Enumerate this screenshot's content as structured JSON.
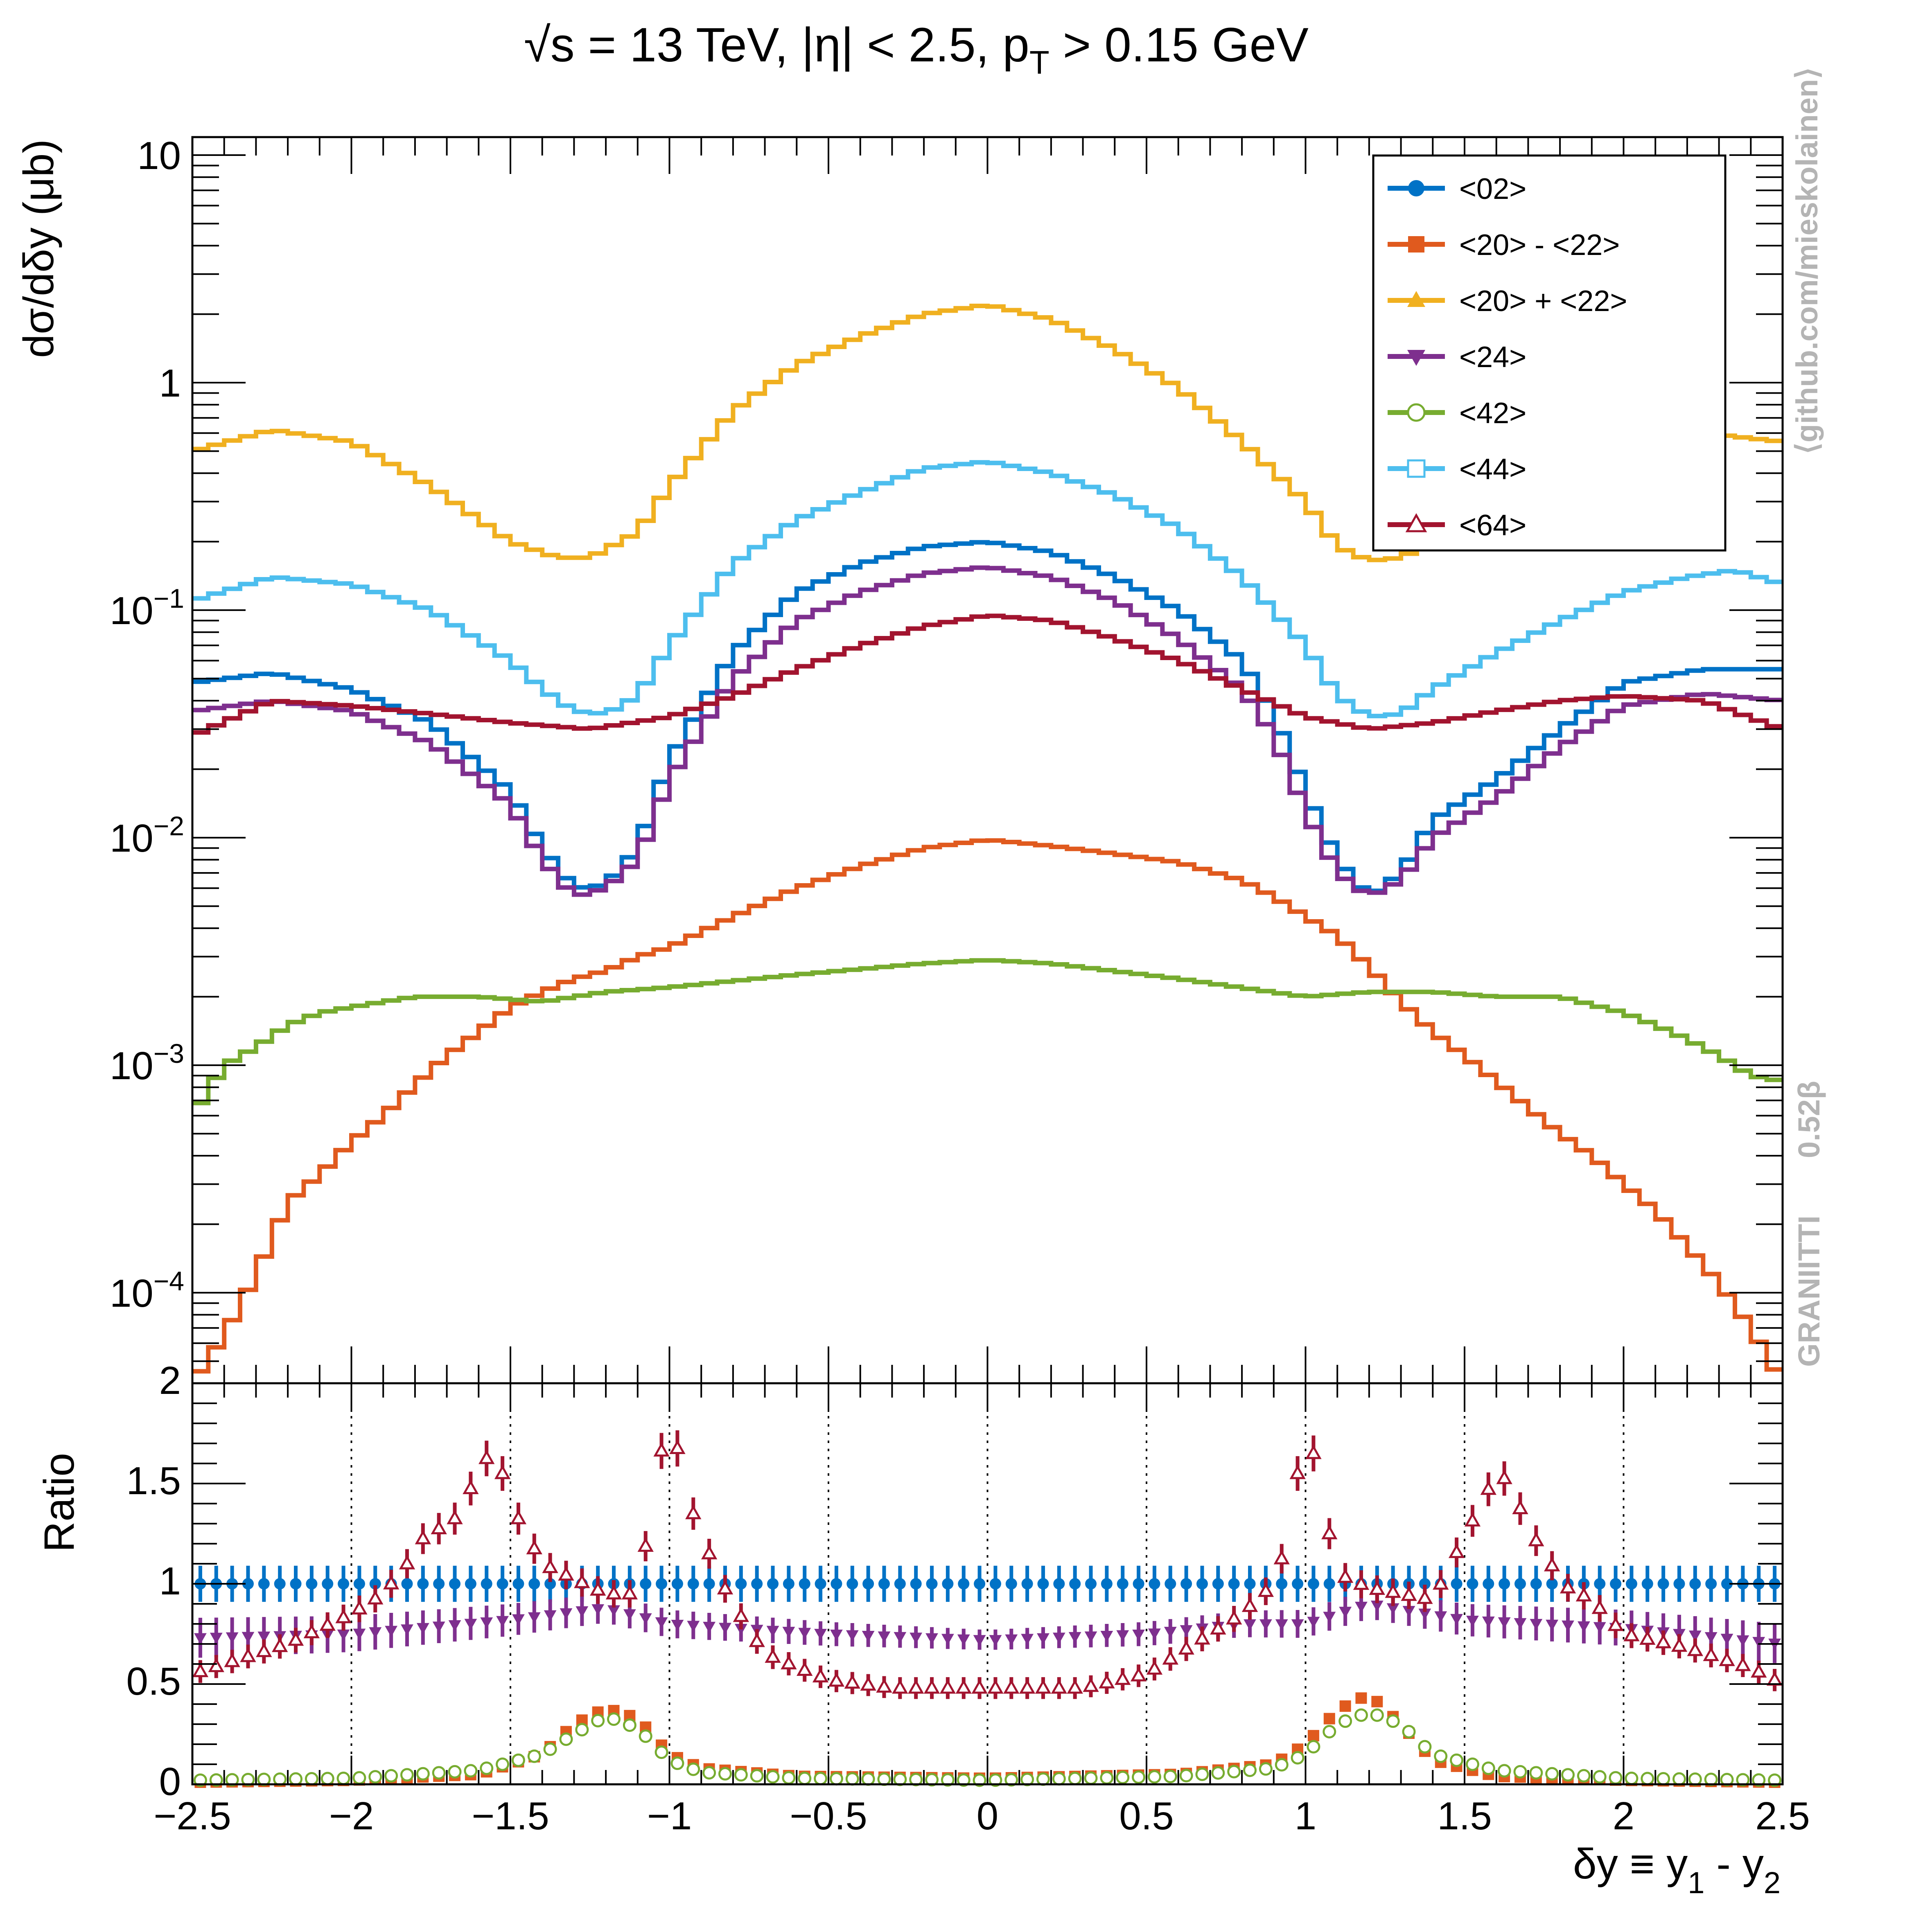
{
  "chart_data": [
    {
      "type": "line",
      "title": "√s = 13 TeV, |η| < 2.5, p_T > 0.15 GeV",
      "title_parts": {
        "main": "√s = 13 TeV, |η| < 2.5, p",
        "sub": "T",
        "tail": " > 0.15 GeV"
      },
      "ylabel": "dσ/dδy  (μb)",
      "y_scale": "log",
      "ylim": [
        4e-05,
        12
      ],
      "xlim": [
        -2.5,
        2.5
      ],
      "x_tick_labels": [
        "−2.5",
        "−2",
        "−1.5",
        "−1",
        "−0.5",
        "0",
        "0.5",
        "1",
        "1.5",
        "2",
        "2.5"
      ],
      "y_tick_labels": [
        {
          "value": 10,
          "label": "10"
        },
        {
          "value": 1,
          "label": "1"
        },
        {
          "value": 0.1,
          "label": "10",
          "exp": "−1"
        },
        {
          "value": 0.01,
          "label": "10",
          "exp": "−2"
        },
        {
          "value": 0.001,
          "label": "10",
          "exp": "−3"
        },
        {
          "value": 0.0001,
          "label": "10",
          "exp": "−4"
        }
      ],
      "legend_placement": "top-right",
      "series": [
        {
          "name": "<02>",
          "color": "#0072c6",
          "marker": "filled-circle",
          "x": [
            -2.5,
            -2.25,
            -2.0,
            -1.75,
            -1.5,
            -1.4,
            -1.3,
            -1.2,
            -1.1,
            -1.0,
            -0.8,
            -0.6,
            -0.4,
            -0.2,
            0.0,
            0.2,
            0.4,
            0.6,
            0.8,
            0.9,
            1.0,
            1.1,
            1.2,
            1.3,
            1.4,
            1.6,
            1.8,
            2.0,
            2.25,
            2.5
          ],
          "y": [
            0.048,
            0.053,
            0.045,
            0.032,
            0.016,
            0.009,
            0.006,
            0.0062,
            0.009,
            0.022,
            0.065,
            0.12,
            0.16,
            0.19,
            0.2,
            0.18,
            0.14,
            0.1,
            0.06,
            0.035,
            0.016,
            0.008,
            0.0055,
            0.007,
            0.012,
            0.018,
            0.03,
            0.048,
            0.055,
            0.055
          ]
        },
        {
          "name": "<20> - <22>",
          "color": "#e05a1e",
          "marker": "filled-square",
          "x": [
            -2.5,
            -2.4,
            -2.3,
            -2.2,
            -2.1,
            -2.0,
            -1.9,
            -1.8,
            -1.7,
            -1.6,
            -1.5,
            -1.4,
            -1.3,
            -1.2,
            -1.1,
            -1.0,
            -0.8,
            -0.6,
            -0.4,
            -0.2,
            0.0,
            0.2,
            0.4,
            0.6,
            0.8,
            0.9,
            1.0,
            1.1,
            1.2,
            1.3,
            1.4,
            1.5,
            1.6,
            1.7,
            1.8,
            1.9,
            2.0,
            2.1,
            2.2,
            2.3,
            2.4,
            2.5
          ],
          "y": [
            4e-05,
            6.5e-05,
            0.00012,
            0.00025,
            0.00033,
            0.00046,
            0.0006,
            0.00082,
            0.0011,
            0.0014,
            0.0018,
            0.0021,
            0.0024,
            0.0026,
            0.003,
            0.0033,
            0.0045,
            0.006,
            0.0075,
            0.009,
            0.0098,
            0.0092,
            0.0085,
            0.0078,
            0.0065,
            0.0055,
            0.0045,
            0.0037,
            0.0027,
            0.0019,
            0.0014,
            0.0011,
            0.00085,
            0.00065,
            0.0005,
            0.0004,
            0.0003,
            0.00023,
            0.00016,
            0.00011,
            7e-05,
            4e-05
          ]
        },
        {
          "name": "<20> + <22>",
          "color": "#f0b020",
          "marker": "filled-triangle-up",
          "x": [
            -2.5,
            -2.25,
            -2.0,
            -1.75,
            -1.5,
            -1.35,
            -1.25,
            -1.1,
            -1.0,
            -0.8,
            -0.6,
            -0.4,
            -0.2,
            0.0,
            0.2,
            0.4,
            0.6,
            0.8,
            1.0,
            1.1,
            1.2,
            1.3,
            1.4,
            1.6,
            1.8,
            2.0,
            2.25,
            2.5
          ],
          "y": [
            0.5,
            0.62,
            0.55,
            0.35,
            0.2,
            0.17,
            0.17,
            0.22,
            0.35,
            0.75,
            1.2,
            1.6,
            2.0,
            2.2,
            1.9,
            1.4,
            0.95,
            0.55,
            0.3,
            0.19,
            0.165,
            0.17,
            0.2,
            0.3,
            0.45,
            0.55,
            0.6,
            0.55
          ]
        },
        {
          "name": "<24>",
          "color": "#7e2f8e",
          "marker": "filled-triangle-down",
          "x": [
            -2.5,
            -2.25,
            -2.0,
            -1.75,
            -1.5,
            -1.4,
            -1.3,
            -1.2,
            -1.1,
            -1.0,
            -0.8,
            -0.6,
            -0.4,
            -0.2,
            0.0,
            0.2,
            0.4,
            0.6,
            0.8,
            0.9,
            1.0,
            1.1,
            1.2,
            1.3,
            1.4,
            1.6,
            1.8,
            2.0,
            2.25,
            2.5
          ],
          "y": [
            0.036,
            0.04,
            0.036,
            0.026,
            0.014,
            0.008,
            0.0055,
            0.006,
            0.008,
            0.018,
            0.05,
            0.09,
            0.12,
            0.145,
            0.155,
            0.14,
            0.11,
            0.075,
            0.045,
            0.028,
            0.013,
            0.007,
            0.0055,
            0.0065,
            0.01,
            0.015,
            0.025,
            0.038,
            0.043,
            0.04
          ]
        },
        {
          "name": "<42>",
          "color": "#77ac30",
          "marker": "open-circle",
          "x": [
            -2.5,
            -2.4,
            -2.3,
            -2.2,
            -2.1,
            -2.0,
            -1.9,
            -1.8,
            -1.6,
            -1.4,
            -1.2,
            -1.0,
            -0.6,
            -0.2,
            0.0,
            0.2,
            0.6,
            1.0,
            1.2,
            1.4,
            1.6,
            1.8,
            2.0,
            2.1,
            2.2,
            2.3,
            2.4,
            2.5
          ],
          "y": [
            0.0006,
            0.001,
            0.0012,
            0.0015,
            0.0017,
            0.0018,
            0.0019,
            0.002,
            0.002,
            0.0019,
            0.0021,
            0.0022,
            0.0025,
            0.0028,
            0.0029,
            0.0028,
            0.0024,
            0.002,
            0.0021,
            0.0021,
            0.002,
            0.002,
            0.0017,
            0.0015,
            0.0013,
            0.0011,
            0.0009,
            0.00085
          ]
        },
        {
          "name": "<44>",
          "color": "#4dbeee",
          "marker": "open-square",
          "x": [
            -2.5,
            -2.25,
            -2.0,
            -1.75,
            -1.5,
            -1.4,
            -1.3,
            -1.2,
            -1.1,
            -1.0,
            -0.8,
            -0.6,
            -0.4,
            -0.2,
            0.0,
            0.2,
            0.4,
            0.6,
            0.8,
            1.0,
            1.1,
            1.2,
            1.3,
            1.4,
            1.6,
            1.8,
            2.0,
            2.2,
            2.35,
            2.5
          ],
          "y": [
            0.11,
            0.14,
            0.13,
            0.1,
            0.06,
            0.045,
            0.036,
            0.035,
            0.042,
            0.07,
            0.16,
            0.25,
            0.33,
            0.42,
            0.45,
            0.4,
            0.32,
            0.23,
            0.14,
            0.07,
            0.042,
            0.034,
            0.035,
            0.045,
            0.065,
            0.09,
            0.12,
            0.14,
            0.15,
            0.13
          ]
        },
        {
          "name": "<64>",
          "color": "#a2142f",
          "marker": "open-triangle-up",
          "x": [
            -2.5,
            -2.25,
            -2.0,
            -1.75,
            -1.5,
            -1.25,
            -1.0,
            -0.8,
            -0.6,
            -0.4,
            -0.2,
            0.0,
            0.2,
            0.4,
            0.6,
            0.8,
            1.0,
            1.2,
            1.4,
            1.6,
            1.8,
            2.0,
            2.25,
            2.5
          ],
          "y": [
            0.028,
            0.04,
            0.038,
            0.035,
            0.032,
            0.03,
            0.034,
            0.042,
            0.055,
            0.07,
            0.085,
            0.095,
            0.09,
            0.075,
            0.06,
            0.045,
            0.034,
            0.03,
            0.032,
            0.036,
            0.04,
            0.042,
            0.04,
            0.03
          ]
        }
      ]
    },
    {
      "type": "scatter",
      "ylabel": "Ratio",
      "xlabel_parts": {
        "main": "δy ≡ y",
        "sub1": "1",
        "mid": " - y",
        "sub2": "2"
      },
      "xlim": [
        -2.5,
        2.5
      ],
      "ylim": [
        0,
        2
      ],
      "y_tick_labels": [
        "0",
        "0.5",
        "1",
        "1.5",
        "2"
      ],
      "grid": "vertical dotted at x tick labels",
      "series": [
        {
          "name": "<02>",
          "color": "#0072c6",
          "marker": "filled-circle",
          "x": [
            -2.5,
            2.5
          ],
          "y": [
            1,
            1
          ]
        },
        {
          "name": "<20> - <22>",
          "color": "#e05a1e",
          "marker": "filled-square",
          "x": [
            -2.5,
            -2.0,
            -1.6,
            -1.4,
            -1.3,
            -1.2,
            -1.1,
            -1.0,
            -0.9,
            -0.6,
            0.0,
            0.6,
            0.9,
            1.0,
            1.1,
            1.2,
            1.3,
            1.4,
            1.6,
            2.0,
            2.5
          ],
          "y": [
            0.01,
            0.02,
            0.05,
            0.15,
            0.3,
            0.38,
            0.33,
            0.15,
            0.08,
            0.04,
            0.03,
            0.05,
            0.1,
            0.2,
            0.37,
            0.45,
            0.3,
            0.12,
            0.04,
            0.02,
            0.01
          ]
        },
        {
          "name": "<24>",
          "color": "#7e2f8e",
          "marker": "filled-triangle-down",
          "x": [
            -2.5,
            -2.0,
            -1.5,
            -1.2,
            -1.0,
            -0.5,
            0.0,
            0.5,
            0.8,
            1.0,
            1.2,
            1.5,
            2.0,
            2.5
          ],
          "y": [
            0.73,
            0.75,
            0.82,
            0.88,
            0.8,
            0.75,
            0.72,
            0.75,
            0.8,
            0.8,
            0.9,
            0.82,
            0.78,
            0.7
          ]
        },
        {
          "name": "<42>",
          "color": "#77ac30",
          "marker": "open-circle",
          "x": [
            -2.5,
            -2.0,
            -1.6,
            -1.4,
            -1.3,
            -1.2,
            -1.1,
            -1.0,
            -0.9,
            -0.6,
            0.0,
            0.6,
            0.9,
            1.0,
            1.1,
            1.2,
            1.3,
            1.4,
            1.6,
            2.0,
            2.5
          ],
          "y": [
            0.02,
            0.03,
            0.07,
            0.15,
            0.25,
            0.34,
            0.28,
            0.12,
            0.06,
            0.03,
            0.02,
            0.04,
            0.08,
            0.15,
            0.3,
            0.36,
            0.3,
            0.15,
            0.07,
            0.03,
            0.02
          ]
        },
        {
          "name": "<64>",
          "color": "#a2142f",
          "marker": "open-triangle-up",
          "x": [
            -2.5,
            -2.4,
            -2.2,
            -2.0,
            -1.9,
            -1.8,
            -1.75,
            -1.7,
            -1.6,
            -1.55,
            -1.5,
            -1.4,
            -1.2,
            -1.1,
            -1.0,
            -0.95,
            -0.9,
            -0.85,
            -0.8,
            -0.7,
            -0.5,
            -0.3,
            0.0,
            0.3,
            0.5,
            0.7,
            0.8,
            0.9,
            0.95,
            1.0,
            1.1,
            1.2,
            1.4,
            1.6,
            1.65,
            1.7,
            1.75,
            1.8,
            1.9,
            2.0,
            2.2,
            2.4,
            2.5
          ],
          "y": [
            0.55,
            0.6,
            0.7,
            0.85,
            0.95,
            1.15,
            1.3,
            1.25,
            1.55,
            1.7,
            1.4,
            1.1,
            0.95,
            0.95,
            1.9,
            1.45,
            1.25,
            1.05,
            0.9,
            0.65,
            0.52,
            0.48,
            0.48,
            0.48,
            0.55,
            0.75,
            0.85,
            1.0,
            1.25,
            1.85,
            1.05,
            0.98,
            0.92,
            1.55,
            1.5,
            1.25,
            1.18,
            1.0,
            0.92,
            0.75,
            0.68,
            0.58,
            0.5
          ]
        }
      ]
    }
  ],
  "side_text": {
    "url": "⟨github.com/mieskolainen⟩",
    "logo": "GRANIITTI",
    "version": "0.52β"
  }
}
